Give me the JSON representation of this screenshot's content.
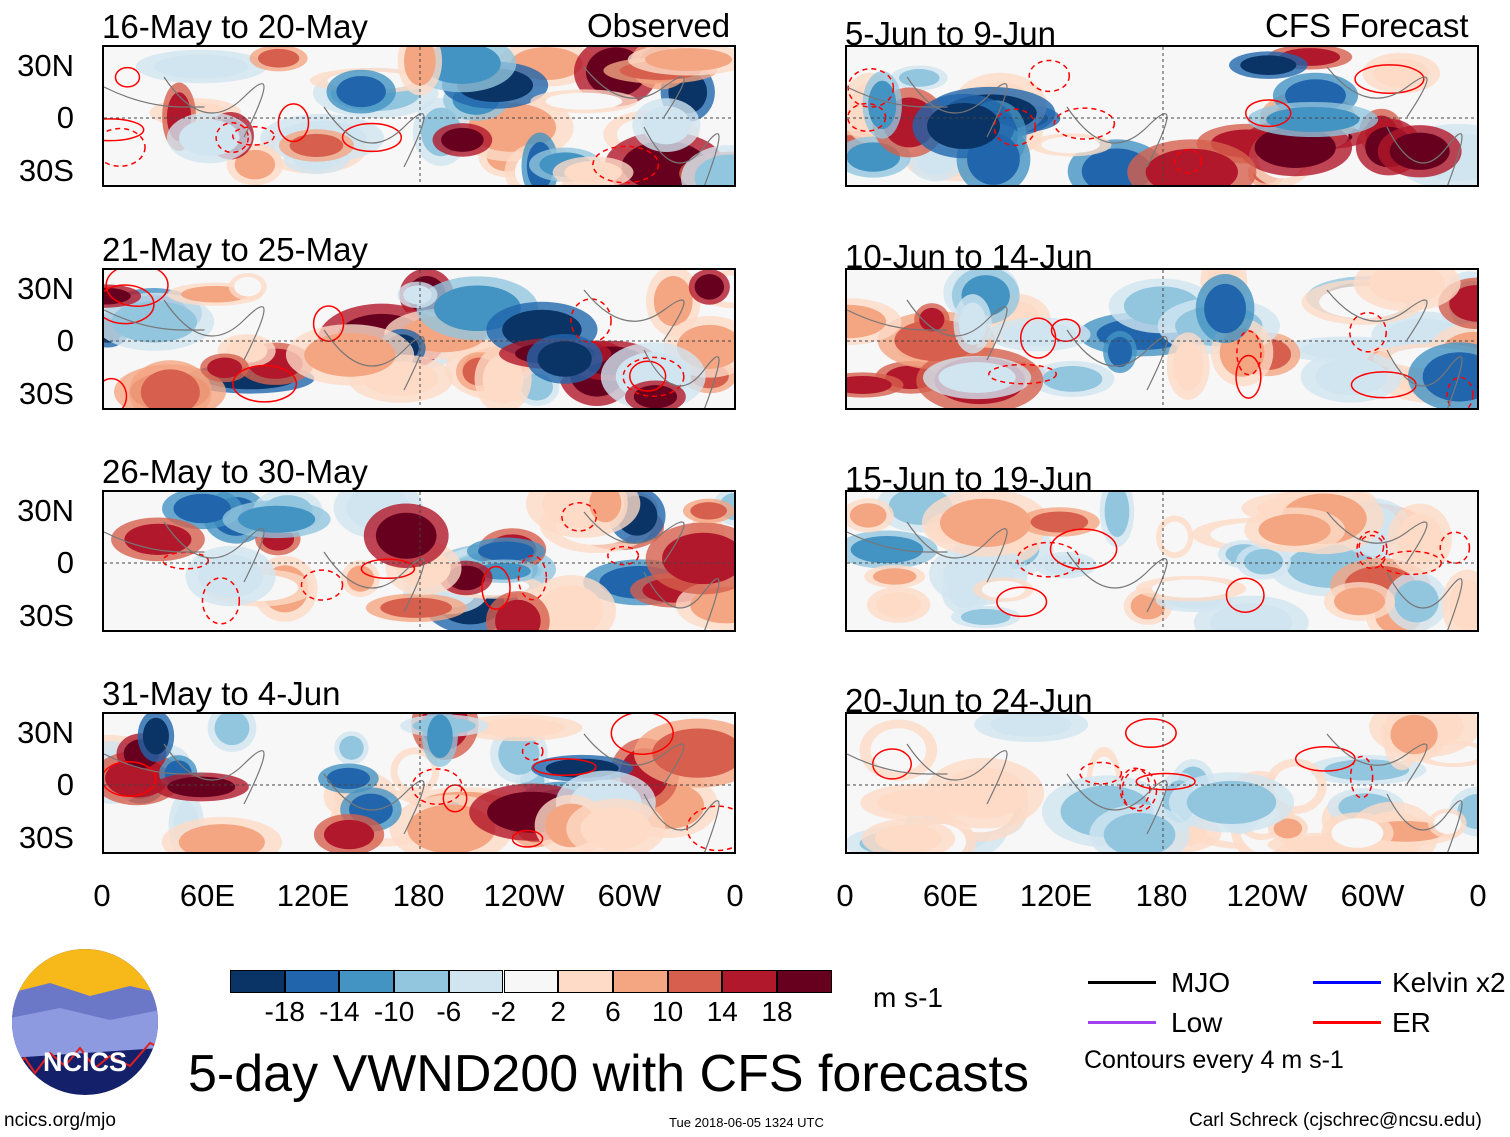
{
  "left_header": "Observed",
  "right_header": "CFS Forecast",
  "left_panels": [
    {
      "title": "16-May to 20-May"
    },
    {
      "title": "21-May to 25-May"
    },
    {
      "title": "26-May to 30-May"
    },
    {
      "title": "31-May to 4-Jun"
    }
  ],
  "right_panels": [
    {
      "title": "5-Jun to 9-Jun"
    },
    {
      "title": "10-Jun to 14-Jun"
    },
    {
      "title": "15-Jun to 19-Jun"
    },
    {
      "title": "20-Jun to 24-Jun"
    }
  ],
  "lat_labels": [
    "30N",
    "0",
    "30S"
  ],
  "lon_labels": [
    "0",
    "60E",
    "120E",
    "180",
    "120W",
    "60W",
    "0"
  ],
  "colorbar": {
    "labels": [
      "-18",
      "-14",
      "-10",
      "-6",
      "-2",
      "2",
      "6",
      "10",
      "14",
      "18"
    ],
    "colors": [
      "#0a3465",
      "#2166ac",
      "#4393c3",
      "#92c5de",
      "#d1e5f0",
      "#f7f7f7",
      "#fddbc7",
      "#f4a582",
      "#d6604d",
      "#b2182b",
      "#67001f"
    ],
    "units": "m s-1"
  },
  "legend": {
    "items": [
      {
        "label": "MJO",
        "color": "#000000"
      },
      {
        "label": "Kelvin x2",
        "color": "#0000ff"
      },
      {
        "label": "Low",
        "color": "#a040f0"
      },
      {
        "label": "ER",
        "color": "#ff0000"
      }
    ],
    "contours": "Contours every 4 m s-1"
  },
  "title": "5-day VWND200 with CFS forecasts",
  "logo_text": "NCICS",
  "footer": {
    "url": "ncics.org/mjo",
    "timestamp": "Tue 2018-06-05 1324 UTC",
    "author": "Carl Schreck (cjschrec@ncsu.edu)"
  }
}
